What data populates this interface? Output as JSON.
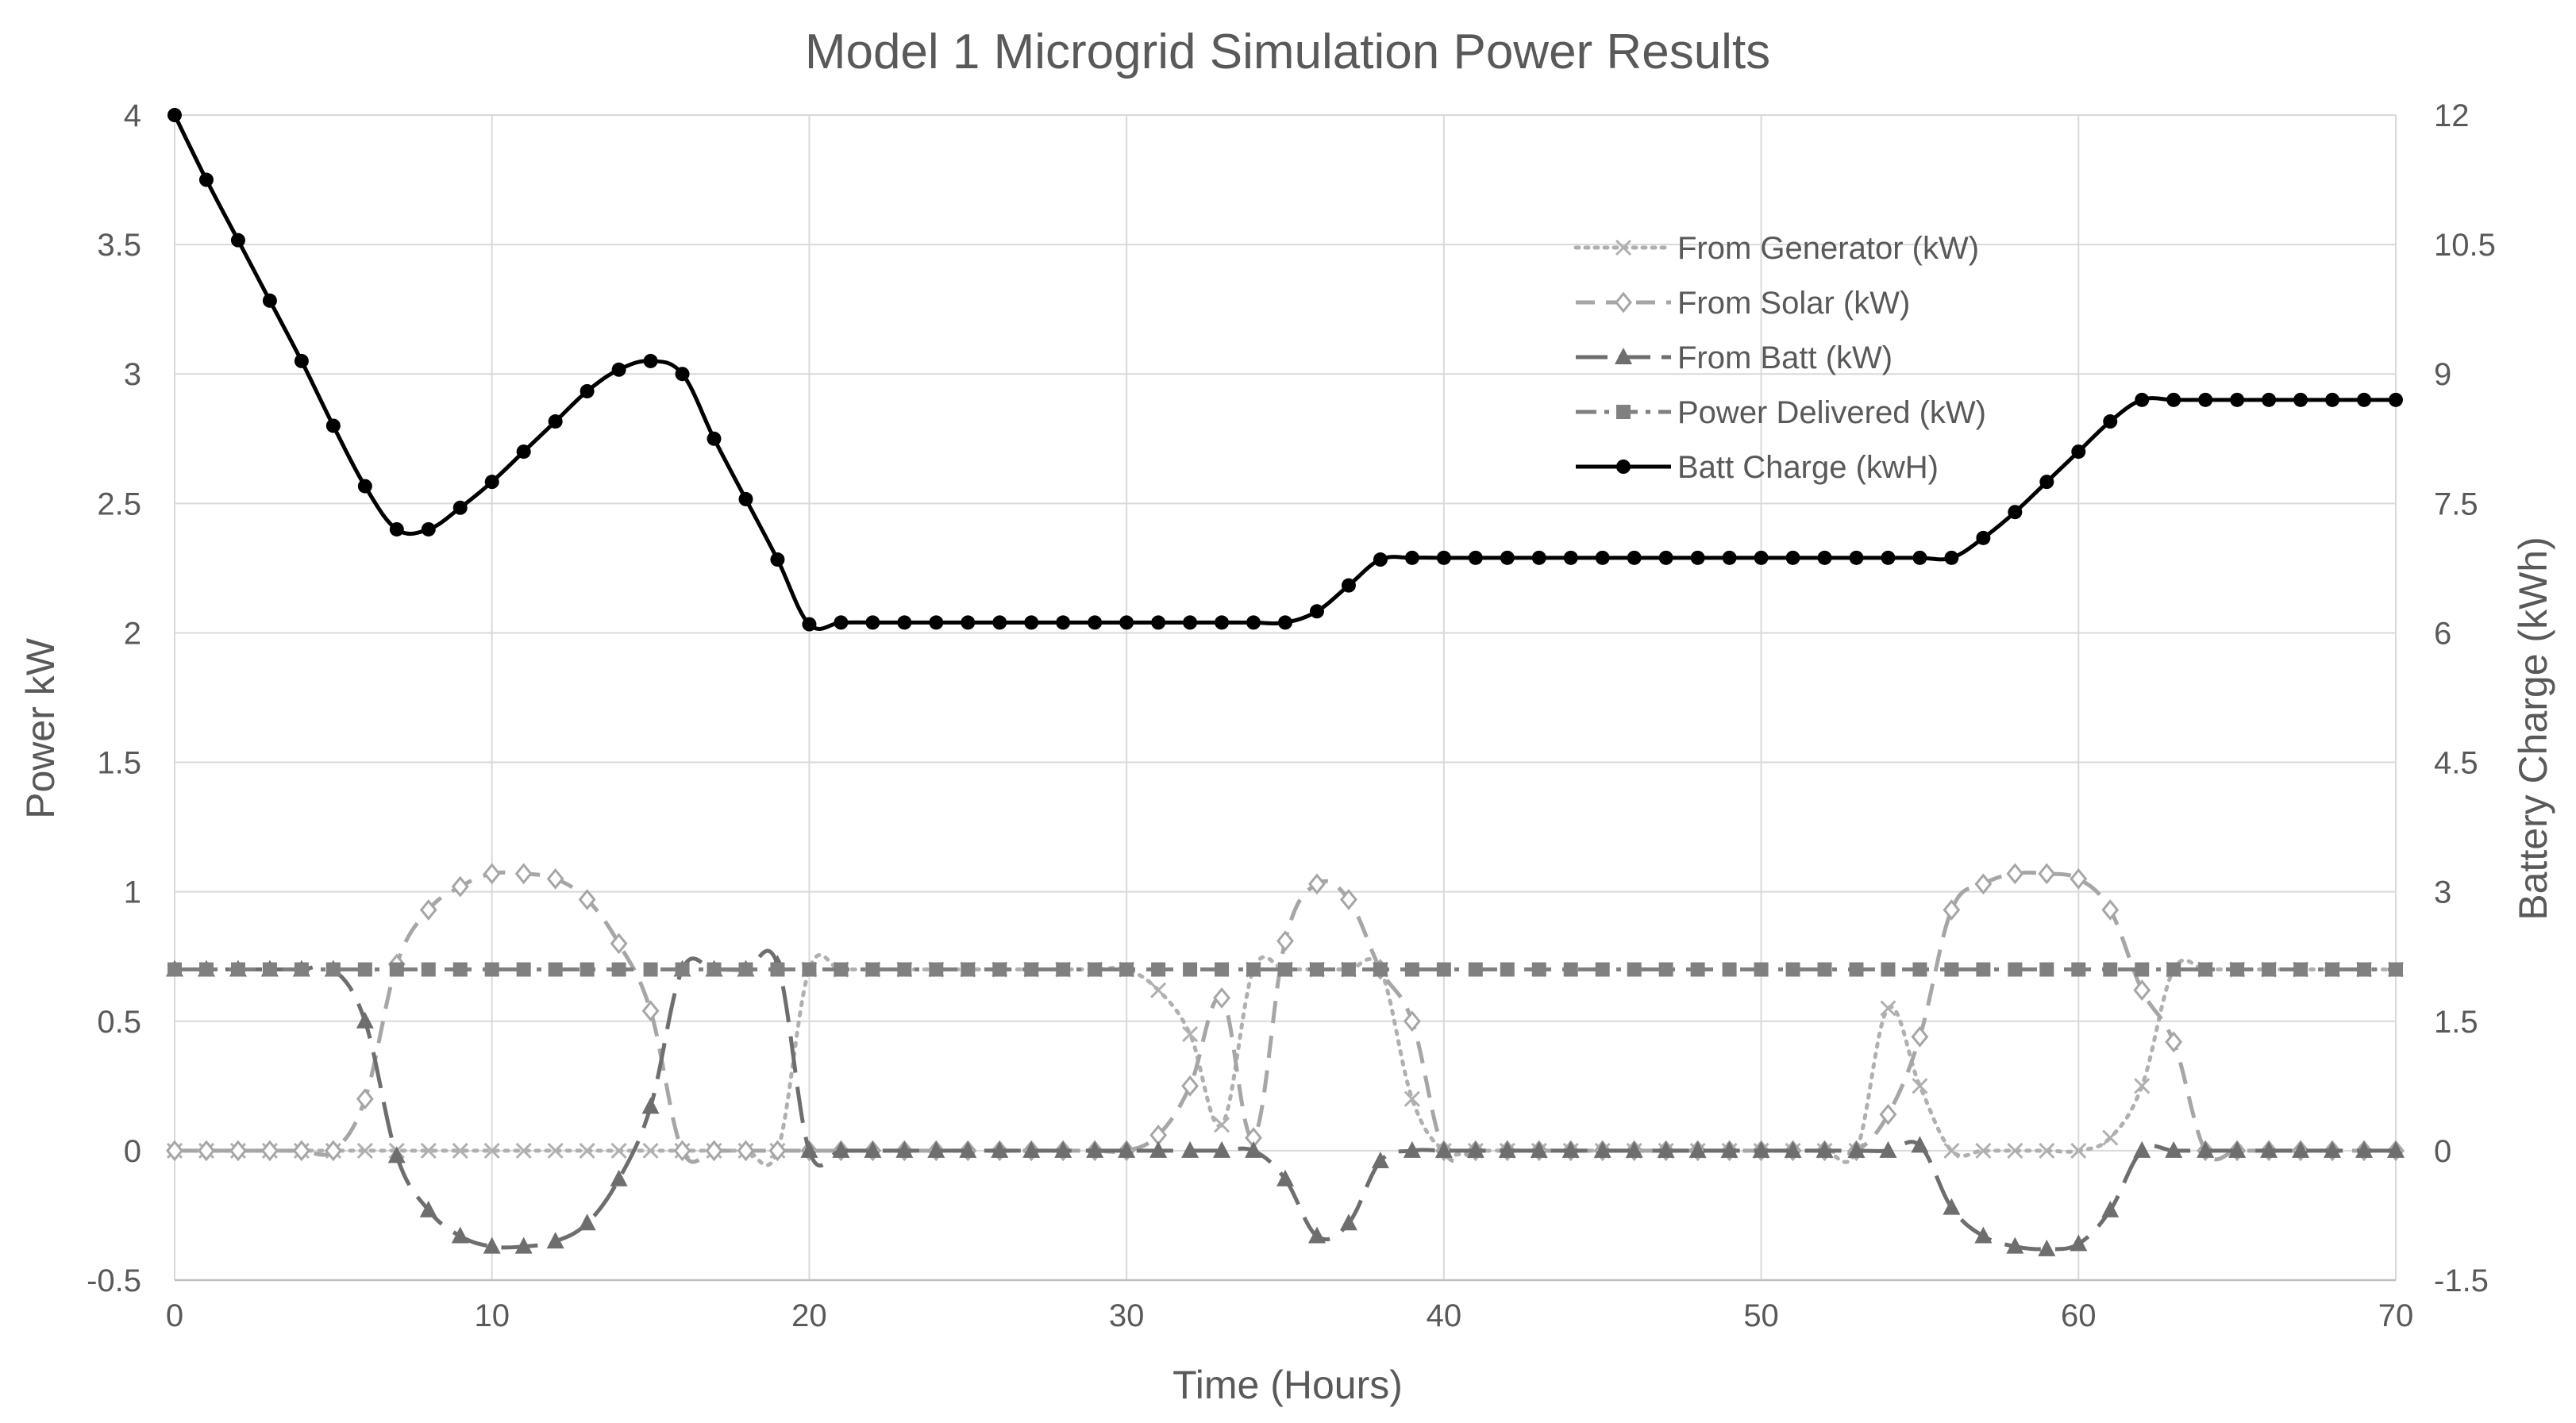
{
  "chart_data": {
    "type": "line",
    "title": "Model 1 Microgrid Simulation Power Results",
    "xlabel": "Time (Hours)",
    "ylabel": "Power kW",
    "y2label": "Battery Charge (kWh)",
    "xlim": [
      0,
      70
    ],
    "ylim": [
      -0.5,
      4
    ],
    "y2lim": [
      -1.5,
      12
    ],
    "x_ticks": [
      "0",
      "10",
      "20",
      "30",
      "40",
      "50",
      "60",
      "70"
    ],
    "y_ticks": [
      "-0.5",
      "0",
      "0.5",
      "1",
      "1.5",
      "2",
      "2.5",
      "3",
      "3.5",
      "4"
    ],
    "y2_ticks": [
      "-1.5",
      "0",
      "1.5",
      "3",
      "4.5",
      "6",
      "7.5",
      "9",
      "10.5",
      "12"
    ],
    "grid": true,
    "legend_position": "top-right",
    "x": [
      0,
      1,
      2,
      3,
      4,
      5,
      6,
      7,
      8,
      9,
      10,
      11,
      12,
      13,
      14,
      15,
      16,
      17,
      18,
      19,
      20,
      21,
      22,
      23,
      24,
      25,
      26,
      27,
      28,
      29,
      30,
      31,
      32,
      33,
      34,
      35,
      36,
      37,
      38,
      39,
      40,
      41,
      42,
      43,
      44,
      45,
      46,
      47,
      48,
      49,
      50,
      51,
      52,
      53,
      54,
      55,
      56,
      57,
      58,
      59,
      60,
      61,
      62,
      63,
      64,
      65,
      66,
      67,
      68,
      69,
      70
    ],
    "series": [
      {
        "name": "From Generator (kW)",
        "axis": "left",
        "color": "#b0b0b0",
        "dash": "dotted",
        "marker": "x",
        "values": [
          0,
          0,
          0,
          0,
          0,
          0,
          0,
          0,
          0,
          0,
          0,
          0,
          0,
          0,
          0,
          0,
          0,
          0,
          0,
          0,
          0.7,
          0.7,
          0.7,
          0.7,
          0.7,
          0.7,
          0.7,
          0.7,
          0.7,
          0.7,
          0.7,
          0.62,
          0.45,
          0.1,
          0.7,
          0.7,
          0.7,
          0.7,
          0.7,
          0.2,
          0,
          0,
          0,
          0,
          0,
          0,
          0,
          0,
          0,
          0,
          0,
          0,
          0,
          0,
          0.55,
          0.25,
          0,
          0,
          0,
          0,
          0,
          0.05,
          0.25,
          0.7,
          0.7,
          0.7,
          0.7,
          0.7,
          0.7,
          0.7,
          0.7
        ]
      },
      {
        "name": "From Solar (kW)",
        "axis": "left",
        "color": "#a6a6a6",
        "dash": "dashed",
        "marker": "diamond",
        "values": [
          0,
          0,
          0,
          0,
          0,
          0,
          0.2,
          0.72,
          0.93,
          1.02,
          1.07,
          1.07,
          1.05,
          0.97,
          0.8,
          0.54,
          0,
          0,
          0,
          0,
          0,
          0,
          0,
          0,
          0,
          0,
          0,
          0,
          0,
          0,
          0,
          0.06,
          0.25,
          0.59,
          0.05,
          0.81,
          1.03,
          0.97,
          0.7,
          0.5,
          0,
          0,
          0,
          0,
          0,
          0,
          0,
          0,
          0,
          0,
          0,
          0,
          0,
          0,
          0.14,
          0.44,
          0.93,
          1.03,
          1.07,
          1.07,
          1.05,
          0.93,
          0.62,
          0.42,
          0,
          0,
          0,
          0,
          0,
          0,
          0
        ]
      },
      {
        "name": "From Batt (kW)",
        "axis": "left",
        "color": "#6e6e6e",
        "dash": "longdash",
        "marker": "triangle",
        "values": [
          0.7,
          0.7,
          0.7,
          0.7,
          0.7,
          0.7,
          0.5,
          -0.02,
          -0.23,
          -0.33,
          -0.37,
          -0.37,
          -0.35,
          -0.28,
          -0.11,
          0.17,
          0.7,
          0.7,
          0.7,
          0.72,
          0,
          0,
          0,
          0,
          0,
          0,
          0,
          0,
          0,
          0,
          0,
          0,
          0,
          0,
          0,
          -0.11,
          -0.33,
          -0.28,
          -0.04,
          0,
          0,
          0,
          0,
          0,
          0,
          0,
          0,
          0,
          0,
          0,
          0,
          0,
          0,
          0,
          0,
          0.02,
          -0.22,
          -0.33,
          -0.37,
          -0.38,
          -0.36,
          -0.23,
          0,
          0,
          0,
          0,
          0,
          0,
          0,
          0,
          0
        ]
      },
      {
        "name": "Power Delivered (kW)",
        "axis": "left",
        "color": "#808080",
        "dash": "dashdot",
        "marker": "square",
        "values": [
          0.7,
          0.7,
          0.7,
          0.7,
          0.7,
          0.7,
          0.7,
          0.7,
          0.7,
          0.7,
          0.7,
          0.7,
          0.7,
          0.7,
          0.7,
          0.7,
          0.7,
          0.7,
          0.7,
          0.7,
          0.7,
          0.7,
          0.7,
          0.7,
          0.7,
          0.7,
          0.7,
          0.7,
          0.7,
          0.7,
          0.7,
          0.7,
          0.7,
          0.7,
          0.7,
          0.7,
          0.7,
          0.7,
          0.7,
          0.7,
          0.7,
          0.7,
          0.7,
          0.7,
          0.7,
          0.7,
          0.7,
          0.7,
          0.7,
          0.7,
          0.7,
          0.7,
          0.7,
          0.7,
          0.7,
          0.7,
          0.7,
          0.7,
          0.7,
          0.7,
          0.7,
          0.7,
          0.7,
          0.7,
          0.7,
          0.7,
          0.7,
          0.7,
          0.7,
          0.7,
          0.7
        ]
      },
      {
        "name": "Batt Charge (kwH)",
        "axis": "right",
        "color": "#000000",
        "dash": "solid",
        "marker": "circle",
        "values": [
          12,
          11.25,
          10.55,
          9.85,
          9.15,
          8.4,
          7.7,
          7.2,
          7.2,
          7.45,
          7.75,
          8.1,
          8.45,
          8.8,
          9.05,
          9.15,
          9.0,
          8.25,
          7.55,
          6.85,
          6.1,
          6.12,
          6.12,
          6.12,
          6.12,
          6.12,
          6.12,
          6.12,
          6.12,
          6.12,
          6.12,
          6.12,
          6.12,
          6.12,
          6.12,
          6.12,
          6.25,
          6.55,
          6.85,
          6.87,
          6.87,
          6.87,
          6.87,
          6.87,
          6.87,
          6.87,
          6.87,
          6.87,
          6.87,
          6.87,
          6.87,
          6.87,
          6.87,
          6.87,
          6.87,
          6.87,
          6.87,
          7.1,
          7.4,
          7.75,
          8.1,
          8.45,
          8.7,
          8.7,
          8.7,
          8.7,
          8.7,
          8.7,
          8.7,
          8.7,
          8.7
        ]
      }
    ]
  }
}
